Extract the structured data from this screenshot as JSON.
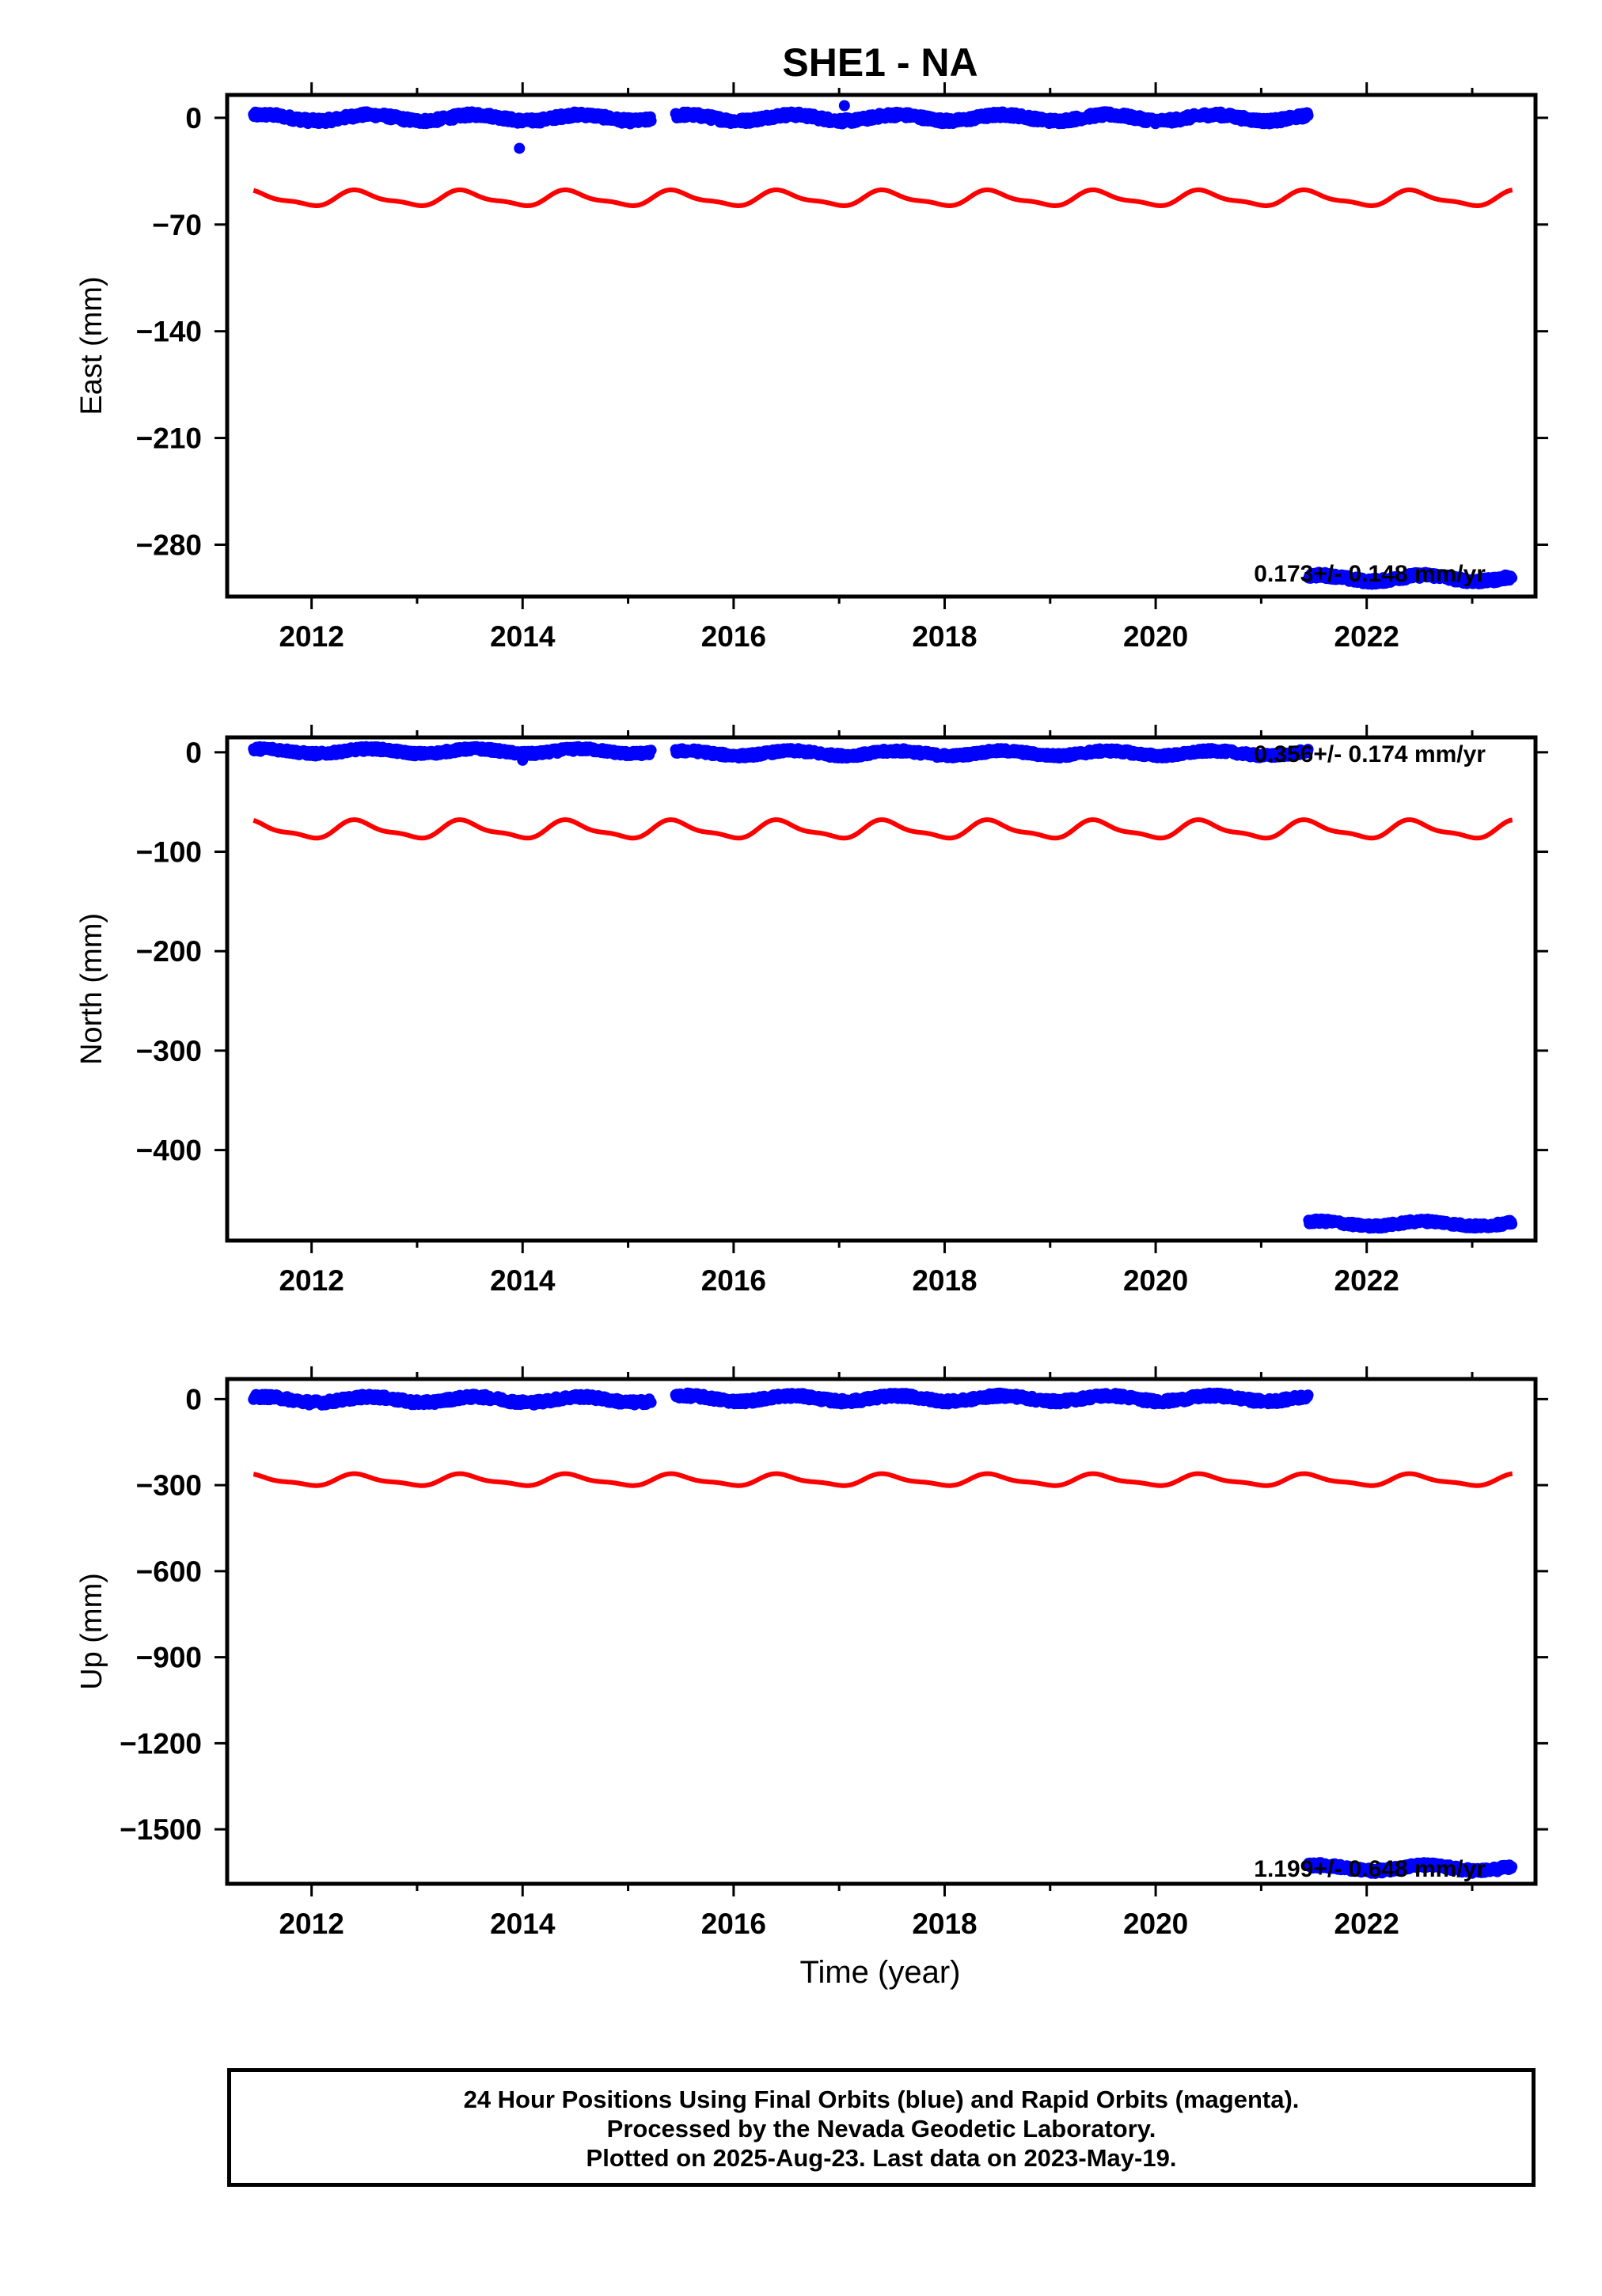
{
  "title": "SHE1 - NA",
  "colors": {
    "data": "#0000ff",
    "model": "#ff0000",
    "frame": "#000000"
  },
  "xlabel": "Time (year)",
  "caption": [
    "24 Hour Positions Using Final Orbits (blue) and Rapid Orbits (magenta).",
    "Processed by the Nevada Geodetic Laboratory.",
    "Plotted on 2025-Aug-23. Last data on 2023-May-19."
  ],
  "chart_data": [
    {
      "type": "scatter",
      "component": "East",
      "ylabel": "East (mm)",
      "xlim": [
        2011.2,
        2023.6
      ],
      "ylim": [
        -314,
        15
      ],
      "xticks": [
        2012,
        2014,
        2016,
        2018,
        2020,
        2022
      ],
      "yticks": [
        0,
        -70,
        -140,
        -210,
        -280
      ],
      "ytick_labels": [
        "0",
        "−70",
        "−140",
        "−210",
        "−280"
      ],
      "rate_label": "0.173+/- 0.148 mm/yr",
      "series": [
        {
          "role": "data",
          "segments": [
            {
              "x_range": [
                2011.45,
                2015.22
              ],
              "y_level": 0,
              "noise": 2.5
            },
            {
              "x_range": [
                2015.45,
                2021.45
              ],
              "y_level": 0,
              "noise": 2.5
            },
            {
              "x_range": [
                2021.45,
                2023.38
              ],
              "y_level": -302,
              "noise": 2.5
            }
          ],
          "outliers": [
            {
              "x": 2013.97,
              "y": -20
            },
            {
              "x": 2017.05,
              "y": 8
            }
          ]
        },
        {
          "role": "model",
          "x_range": [
            2011.45,
            2023.38
          ],
          "y_level": -53,
          "amplitude": 4.5
        }
      ]
    },
    {
      "type": "scatter",
      "component": "North",
      "ylabel": "North (mm)",
      "xlim": [
        2011.2,
        2023.6
      ],
      "ylim": [
        -491,
        15
      ],
      "xticks": [
        2012,
        2014,
        2016,
        2018,
        2020,
        2022
      ],
      "yticks": [
        0,
        -100,
        -200,
        -300,
        -400
      ],
      "ytick_labels": [
        "0",
        "−100",
        "−200",
        "−300",
        "−400"
      ],
      "rate_label": "0.356+/- 0.174 mm/yr",
      "series": [
        {
          "role": "data",
          "segments": [
            {
              "x_range": [
                2011.45,
                2015.22
              ],
              "y_level": 1,
              "noise": 3
            },
            {
              "x_range": [
                2015.45,
                2021.45
              ],
              "y_level": -1,
              "noise": 3
            },
            {
              "x_range": [
                2021.45,
                2023.38
              ],
              "y_level": -474,
              "noise": 3
            }
          ],
          "outliers": [
            {
              "x": 2014.0,
              "y": -8
            }
          ]
        },
        {
          "role": "model",
          "x_range": [
            2011.45,
            2023.38
          ],
          "y_level": -78,
          "amplitude": 8
        }
      ]
    },
    {
      "type": "scatter",
      "component": "Up",
      "ylabel": "Up (mm)",
      "xlim": [
        2011.2,
        2023.6
      ],
      "ylim": [
        -1690,
        70
      ],
      "xticks": [
        2012,
        2014,
        2016,
        2018,
        2020,
        2022
      ],
      "yticks": [
        0,
        -300,
        -600,
        -900,
        -1200,
        -1500
      ],
      "ytick_labels": [
        "0",
        "−300",
        "−600",
        "−900",
        "−1200",
        "−1500"
      ],
      "rate_label": "1.199+/- 0.648 mm/yr",
      "series": [
        {
          "role": "data",
          "segments": [
            {
              "x_range": [
                2011.45,
                2015.22
              ],
              "y_level": -2,
              "noise": 12
            },
            {
              "x_range": [
                2015.45,
                2021.45
              ],
              "y_level": 2,
              "noise": 12
            },
            {
              "x_range": [
                2021.45,
                2023.38
              ],
              "y_level": -1635,
              "noise": 12
            }
          ],
          "outliers": []
        },
        {
          "role": "model",
          "x_range": [
            2011.45,
            2023.38
          ],
          "y_level": -283,
          "amplitude": 18
        }
      ]
    }
  ]
}
